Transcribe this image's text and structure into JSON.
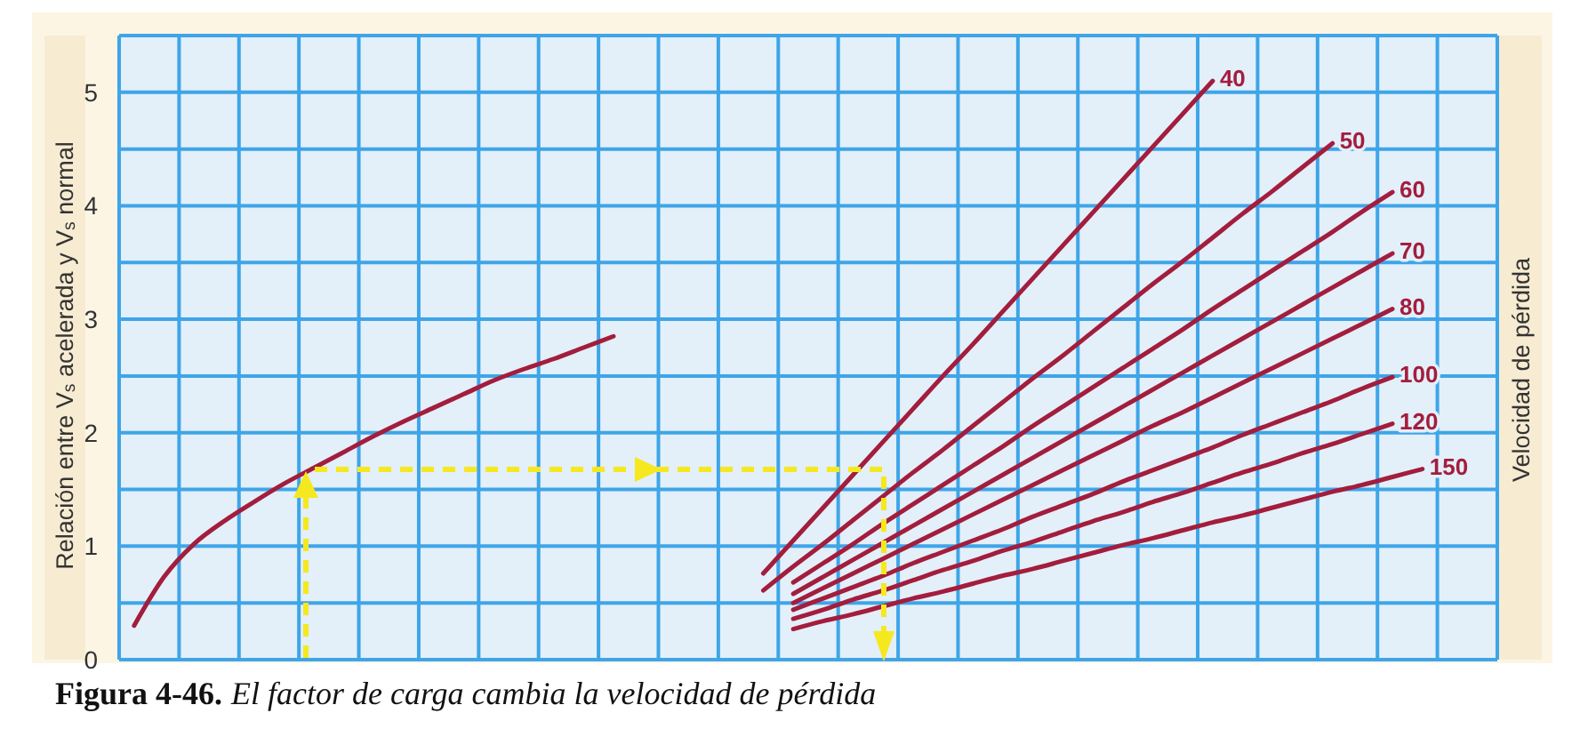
{
  "chart_data": {
    "type": "line",
    "categories": [
      null,
      null,
      null,
      null,
      null,
      null,
      null,
      null,
      null,
      null,
      null,
      null,
      null,
      null,
      null,
      null,
      null,
      null,
      null,
      null,
      null,
      null,
      null,
      null,
      null,
      null,
      null,
      null,
      null,
      null,
      null,
      null,
      null,
      null,
      null,
      null,
      null,
      null,
      null,
      null,
      null,
      null,
      null,
      null,
      null,
      null
    ],
    "ylabel": "Relación entre V$_{s}$ acelerada y V$_{s}$ normal",
    "legend_title": "Velocidad de pérdida",
    "annotations": [
      "Figura 4-46.",
      "El factor de carga cambia la velocidad de pérdida"
    ],
    "ylim": [
      0,
      5.5
    ],
    "yticks": [
      0,
      {
        "value": 0.5,
        "label": null
      },
      1,
      {
        "value": 1.5,
        "label": null
      },
      2,
      {
        "value": 2.5,
        "label": null
      },
      3,
      {
        "value": 3.5,
        "label": null
      },
      4,
      {
        "value": 4.5,
        "label": null
      },
      5,
      {
        "value": 5.5,
        "label": null
      }
    ],
    "grid": true,
    "legend": false,
    "marker": "none",
    "line_style": "solid",
    "tick_labels": "y",
    "series": [
      {
        "color": "#a31d3d",
        "values": [
          0.3,
          0.73,
          1.02,
          1.22,
          1.39,
          1.55,
          1.69,
          1.83,
          1.97,
          2.1,
          2.22,
          2.34,
          2.46,
          2.56,
          2.65,
          2.75,
          2.85,
          null,
          null,
          null,
          null,
          null,
          null,
          null,
          null,
          null,
          null,
          null,
          null,
          null,
          null,
          null,
          null,
          null,
          null,
          null,
          null,
          null,
          null,
          null,
          null,
          null,
          null,
          null,
          null,
          null
        ]
      },
      {
        "name": "40",
        "color": "#a31d3d",
        "values": [
          null,
          null,
          null,
          null,
          null,
          null,
          null,
          null,
          null,
          null,
          null,
          null,
          null,
          null,
          null,
          null,
          null,
          null,
          null,
          null,
          null,
          0.76,
          1.05,
          1.34,
          1.63,
          1.92,
          2.21,
          2.5,
          2.78,
          3.07,
          3.36,
          3.65,
          3.94,
          4.23,
          4.52,
          4.81,
          5.1,
          null,
          null,
          null,
          null,
          null,
          null,
          null,
          null,
          null
        ]
      },
      {
        "name": "50",
        "color": "#a31d3d",
        "values": [
          null,
          null,
          null,
          null,
          null,
          null,
          null,
          null,
          null,
          null,
          null,
          null,
          null,
          null,
          null,
          null,
          null,
          null,
          null,
          null,
          null,
          0.61,
          0.82,
          1.02,
          1.23,
          1.44,
          1.65,
          1.85,
          2.06,
          2.27,
          2.48,
          2.68,
          2.89,
          3.1,
          3.31,
          3.51,
          3.72,
          3.93,
          4.13,
          4.34,
          4.55,
          null,
          null,
          null,
          null,
          null
        ]
      },
      {
        "name": "60",
        "color": "#a31d3d",
        "values": [
          null,
          null,
          null,
          null,
          null,
          null,
          null,
          null,
          null,
          null,
          null,
          null,
          null,
          null,
          null,
          null,
          null,
          null,
          null,
          null,
          null,
          null,
          0.68,
          0.85,
          1.02,
          1.2,
          1.37,
          1.54,
          1.71,
          1.88,
          2.06,
          2.23,
          2.4,
          2.57,
          2.74,
          2.91,
          3.09,
          3.26,
          3.43,
          3.6,
          3.77,
          3.95,
          4.12,
          null,
          null,
          null
        ]
      },
      {
        "name": "70",
        "color": "#a31d3d",
        "values": [
          null,
          null,
          null,
          null,
          null,
          null,
          null,
          null,
          null,
          null,
          null,
          null,
          null,
          null,
          null,
          null,
          null,
          null,
          null,
          null,
          null,
          null,
          0.58,
          0.73,
          0.88,
          1.03,
          1.18,
          1.33,
          1.48,
          1.63,
          1.78,
          1.93,
          2.08,
          2.23,
          2.38,
          2.53,
          2.68,
          2.83,
          2.98,
          3.13,
          3.28,
          3.43,
          3.58,
          null,
          null,
          null
        ]
      },
      {
        "name": "80",
        "color": "#a31d3d",
        "values": [
          null,
          null,
          null,
          null,
          null,
          null,
          null,
          null,
          null,
          null,
          null,
          null,
          null,
          null,
          null,
          null,
          null,
          null,
          null,
          null,
          null,
          null,
          0.5,
          0.63,
          0.76,
          0.89,
          1.02,
          1.15,
          1.28,
          1.41,
          1.54,
          1.67,
          1.8,
          1.93,
          2.06,
          2.18,
          2.31,
          2.44,
          2.57,
          2.7,
          2.83,
          2.96,
          3.09,
          null,
          null,
          null
        ]
      },
      {
        "name": "100",
        "color": "#a31d3d",
        "values": [
          null,
          null,
          null,
          null,
          null,
          null,
          null,
          null,
          null,
          null,
          null,
          null,
          null,
          null,
          null,
          null,
          null,
          null,
          null,
          null,
          null,
          null,
          0.44,
          0.54,
          0.64,
          0.74,
          0.85,
          0.95,
          1.05,
          1.15,
          1.26,
          1.36,
          1.46,
          1.57,
          1.67,
          1.77,
          1.87,
          1.98,
          2.08,
          2.18,
          2.28,
          2.39,
          2.49,
          null,
          null,
          null
        ]
      },
      {
        "name": "120",
        "color": "#a31d3d",
        "values": [
          null,
          null,
          null,
          null,
          null,
          null,
          null,
          null,
          null,
          null,
          null,
          null,
          null,
          null,
          null,
          null,
          null,
          null,
          null,
          null,
          null,
          null,
          0.36,
          0.44,
          0.53,
          0.61,
          0.7,
          0.79,
          0.87,
          0.96,
          1.04,
          1.13,
          1.22,
          1.3,
          1.39,
          1.47,
          1.56,
          1.65,
          1.73,
          1.82,
          1.9,
          1.99,
          2.08,
          null,
          null,
          null
        ]
      },
      {
        "name": "150",
        "color": "#a31d3d",
        "values": [
          null,
          null,
          null,
          null,
          null,
          null,
          null,
          null,
          null,
          null,
          null,
          null,
          null,
          null,
          null,
          null,
          null,
          null,
          null,
          null,
          null,
          null,
          0.27,
          0.34,
          0.4,
          0.47,
          0.54,
          0.6,
          0.67,
          0.74,
          0.8,
          0.87,
          0.94,
          1.01,
          1.07,
          1.14,
          1.21,
          1.27,
          1.34,
          1.41,
          1.48,
          1.54,
          1.61,
          1.68,
          null,
          null
        ]
      }
    ]
  }
}
